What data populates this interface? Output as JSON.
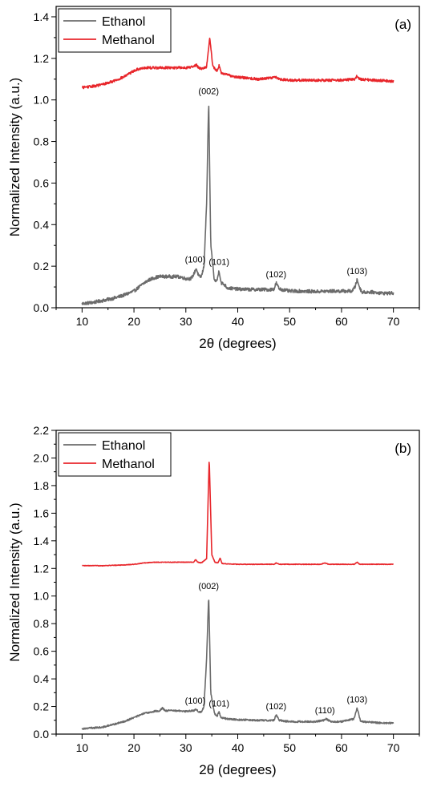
{
  "chart_data": [
    {
      "type": "line",
      "panel_label": "(a)",
      "xlabel": "2θ (degrees)",
      "ylabel": "Normalized Intensity (a.u.)",
      "xlim": [
        5,
        75
      ],
      "ylim": [
        0,
        1.45
      ],
      "xticks": [
        10,
        20,
        30,
        40,
        50,
        60,
        70
      ],
      "xtick_labels": [
        "10",
        "20",
        "30",
        "40",
        "50",
        "60",
        "70"
      ],
      "yticks": [
        0,
        0.2,
        0.4,
        0.6,
        0.8,
        1.0,
        1.2,
        1.4
      ],
      "ytick_labels": [
        "0.0",
        "0.2",
        "0.4",
        "0.6",
        "0.8",
        "1.0",
        "1.2",
        "1.4"
      ],
      "legend": {
        "position": "top-left"
      },
      "series": [
        {
          "name": "Ethanol",
          "color": "#6b6b6b",
          "profile": {
            "x": [
              10,
              12,
              14,
              16,
              18,
              20,
              21,
              22,
              23,
              24,
              25,
              26,
              27,
              28,
              29,
              30,
              31,
              31.5,
              32,
              32.5,
              33,
              33.5,
              34,
              34.4,
              34.8,
              35.5,
              36,
              36.4,
              36.8,
              37.5,
              38,
              40,
              42,
              44,
              46,
              47,
              47.4,
              48,
              49,
              50,
              52,
              55,
              58,
              60,
              62,
              62.6,
              63,
              63.6,
              64,
              66,
              68,
              70
            ],
            "y": [
              0.02,
              0.025,
              0.035,
              0.045,
              0.06,
              0.08,
              0.1,
              0.12,
              0.135,
              0.145,
              0.15,
              0.15,
              0.15,
              0.15,
              0.148,
              0.14,
              0.14,
              0.16,
              0.19,
              0.15,
              0.15,
              0.2,
              0.5,
              1.0,
              0.3,
              0.13,
              0.13,
              0.18,
              0.12,
              0.11,
              0.095,
              0.09,
              0.088,
              0.088,
              0.087,
              0.09,
              0.12,
              0.09,
              0.085,
              0.08,
              0.08,
              0.078,
              0.08,
              0.08,
              0.08,
              0.1,
              0.135,
              0.09,
              0.075,
              0.075,
              0.07,
              0.07
            ]
          },
          "noise": 0.008
        },
        {
          "name": "Methanol",
          "color": "#e8262b",
          "profile": {
            "x": [
              10,
              12,
              14,
              16,
              18,
              19,
              20,
              21,
              22,
              24,
              26,
              28,
              30,
              31.5,
              32,
              32.5,
              33,
              34,
              34.6,
              35.2,
              36,
              36.4,
              36.8,
              38,
              40,
              44,
              47.4,
              48,
              50,
              55,
              60,
              62.5,
              63,
              63.5,
              66,
              70
            ],
            "y": [
              1.06,
              1.065,
              1.075,
              1.09,
              1.11,
              1.125,
              1.14,
              1.15,
              1.155,
              1.155,
              1.155,
              1.155,
              1.155,
              1.16,
              1.17,
              1.155,
              1.15,
              1.16,
              1.3,
              1.16,
              1.14,
              1.165,
              1.13,
              1.12,
              1.11,
              1.1,
              1.11,
              1.1,
              1.095,
              1.095,
              1.095,
              1.1,
              1.115,
              1.1,
              1.095,
              1.09
            ]
          },
          "noise": 0.006
        }
      ],
      "annotations": [
        {
          "text": "(002)",
          "x": 34.4,
          "y": 1.0
        },
        {
          "text": "(100)",
          "x": 31.8,
          "y": 0.19
        },
        {
          "text": "(101)",
          "x": 36.4,
          "y": 0.18
        },
        {
          "text": "(102)",
          "x": 47.4,
          "y": 0.12
        },
        {
          "text": "(103)",
          "x": 63.0,
          "y": 0.135
        }
      ]
    },
    {
      "type": "line",
      "panel_label": "(b)",
      "xlabel": "2θ (degrees)",
      "ylabel": "Normalized Intensity (a.u.)",
      "xlim": [
        5,
        75
      ],
      "ylim": [
        0,
        2.2
      ],
      "xticks": [
        10,
        20,
        30,
        40,
        50,
        60,
        70
      ],
      "xtick_labels": [
        "10",
        "20",
        "30",
        "40",
        "50",
        "60",
        "70"
      ],
      "yticks": [
        0,
        0.2,
        0.4,
        0.6,
        0.8,
        1.0,
        1.2,
        1.4,
        1.6,
        1.8,
        2.0,
        2.2
      ],
      "ytick_labels": [
        "0.0",
        "0.2",
        "0.4",
        "0.6",
        "0.8",
        "1.0",
        "1.2",
        "1.4",
        "1.6",
        "1.8",
        "2.0",
        "2.2"
      ],
      "legend": {
        "position": "top-left"
      },
      "series": [
        {
          "name": "Ethanol",
          "color": "#6b6b6b",
          "profile": {
            "x": [
              10,
              12,
              14,
              16,
              18,
              20,
              22,
              24,
              25,
              25.5,
              26,
              28,
              30,
              31.5,
              32,
              32.5,
              33,
              33.5,
              34,
              34.4,
              34.8,
              35.5,
              36,
              36.4,
              36.8,
              38,
              40,
              44,
              47,
              47.4,
              48,
              50,
              55,
              56.5,
              57,
              58,
              60,
              62.4,
              63,
              63.6,
              64,
              66,
              68,
              70
            ],
            "y": [
              0.04,
              0.045,
              0.05,
              0.07,
              0.09,
              0.12,
              0.15,
              0.165,
              0.17,
              0.19,
              0.17,
              0.17,
              0.165,
              0.17,
              0.18,
              0.16,
              0.16,
              0.2,
              0.55,
              1.01,
              0.3,
              0.15,
              0.13,
              0.16,
              0.12,
              0.11,
              0.105,
              0.1,
              0.1,
              0.14,
              0.1,
              0.09,
              0.09,
              0.1,
              0.11,
              0.09,
              0.09,
              0.11,
              0.19,
              0.1,
              0.09,
              0.085,
              0.08,
              0.08
            ]
          },
          "noise": 0.006
        },
        {
          "name": "Methanol",
          "color": "#e8262b",
          "profile": {
            "x": [
              10,
              14,
              18,
              20,
              22,
              24,
              28,
              30,
              31.5,
              31.9,
              32.3,
              33,
              34,
              34.5,
              35,
              35.6,
              36.2,
              36.6,
              37,
              40,
              47,
              47.4,
              48,
              56,
              56.8,
              57.5,
              62.5,
              63,
              63.5,
              70
            ],
            "y": [
              1.22,
              1.22,
              1.225,
              1.23,
              1.24,
              1.245,
              1.245,
              1.245,
              1.245,
              1.265,
              1.245,
              1.24,
              1.27,
              2.0,
              1.3,
              1.245,
              1.24,
              1.275,
              1.235,
              1.23,
              1.23,
              1.24,
              1.23,
              1.23,
              1.24,
              1.23,
              1.23,
              1.245,
              1.23,
              1.23
            ]
          },
          "noise": 0.002
        }
      ],
      "annotations": [
        {
          "text": "(002)",
          "x": 34.4,
          "y": 1.01
        },
        {
          "text": "(100)",
          "x": 31.8,
          "y": 0.18
        },
        {
          "text": "(101)",
          "x": 36.4,
          "y": 0.16
        },
        {
          "text": "(102)",
          "x": 47.4,
          "y": 0.14
        },
        {
          "text": "(110)",
          "x": 56.8,
          "y": 0.11
        },
        {
          "text": "(103)",
          "x": 63.0,
          "y": 0.19
        }
      ]
    }
  ]
}
